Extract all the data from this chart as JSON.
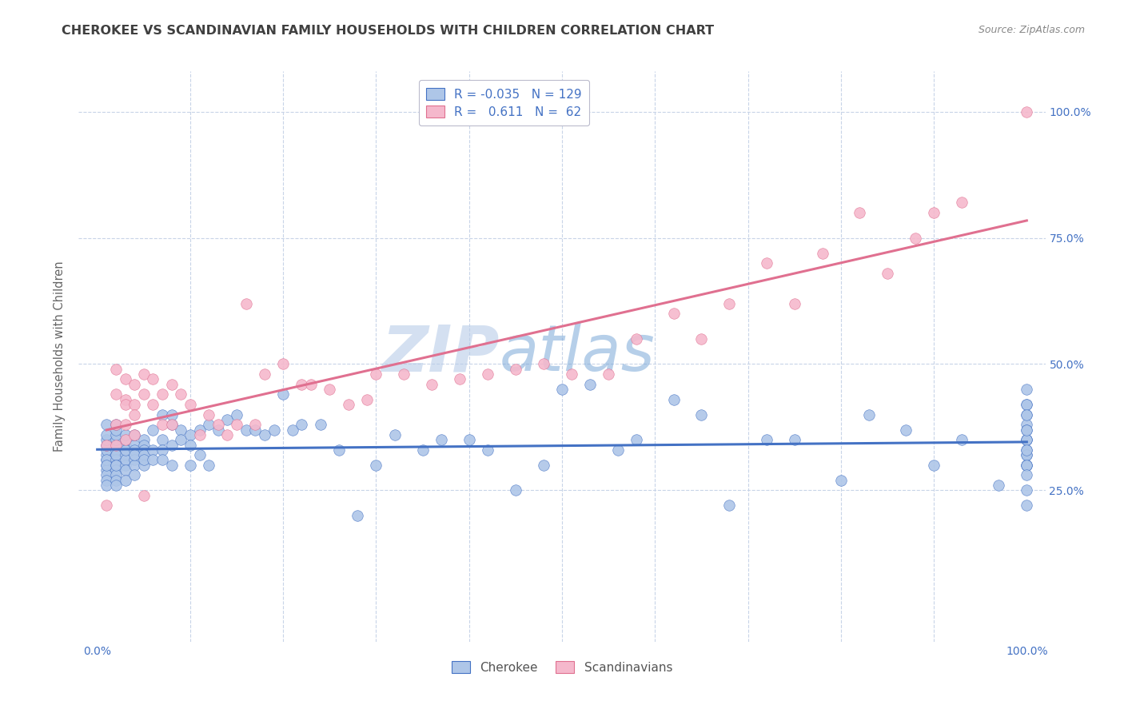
{
  "title": "CHEROKEE VS SCANDINAVIAN FAMILY HOUSEHOLDS WITH CHILDREN CORRELATION CHART",
  "source": "Source: ZipAtlas.com",
  "ylabel": "Family Households with Children",
  "xlim": [
    -0.02,
    1.02
  ],
  "ylim": [
    -0.05,
    1.08
  ],
  "watermark_zip": "ZIP",
  "watermark_atlas": "atlas",
  "legend_cherokee_R": "-0.035",
  "legend_cherokee_N": "129",
  "legend_scand_R": "0.611",
  "legend_scand_N": "62",
  "cherokee_color": "#aec6e8",
  "scand_color": "#f5b8cc",
  "cherokee_line_color": "#4472c4",
  "scand_line_color": "#e07090",
  "background_color": "#ffffff",
  "grid_color": "#c8d4e8",
  "title_color": "#404040",
  "source_color": "#888888",
  "label_color": "#4472c4",
  "cherokee_x": [
    0.01,
    0.01,
    0.01,
    0.01,
    0.01,
    0.01,
    0.01,
    0.01,
    0.01,
    0.01,
    0.01,
    0.01,
    0.01,
    0.01,
    0.02,
    0.02,
    0.02,
    0.02,
    0.02,
    0.02,
    0.02,
    0.02,
    0.02,
    0.02,
    0.02,
    0.02,
    0.02,
    0.02,
    0.02,
    0.03,
    0.03,
    0.03,
    0.03,
    0.03,
    0.03,
    0.03,
    0.03,
    0.03,
    0.03,
    0.04,
    0.04,
    0.04,
    0.04,
    0.04,
    0.04,
    0.04,
    0.05,
    0.05,
    0.05,
    0.05,
    0.05,
    0.05,
    0.06,
    0.06,
    0.06,
    0.07,
    0.07,
    0.07,
    0.07,
    0.08,
    0.08,
    0.08,
    0.08,
    0.09,
    0.09,
    0.1,
    0.1,
    0.1,
    0.11,
    0.11,
    0.12,
    0.12,
    0.13,
    0.14,
    0.15,
    0.16,
    0.17,
    0.18,
    0.19,
    0.2,
    0.21,
    0.22,
    0.24,
    0.26,
    0.28,
    0.3,
    0.32,
    0.35,
    0.37,
    0.4,
    0.42,
    0.45,
    0.48,
    0.5,
    0.53,
    0.56,
    0.58,
    0.62,
    0.65,
    0.68,
    0.72,
    0.75,
    0.8,
    0.83,
    0.87,
    0.9,
    0.93,
    0.97,
    1.0,
    1.0,
    1.0,
    1.0,
    1.0,
    1.0,
    1.0,
    1.0,
    1.0,
    1.0,
    1.0,
    1.0,
    1.0,
    1.0,
    1.0,
    1.0,
    1.0,
    1.0,
    1.0,
    1.0,
    1.0
  ],
  "cherokee_y": [
    0.31,
    0.32,
    0.33,
    0.3,
    0.29,
    0.34,
    0.35,
    0.28,
    0.27,
    0.36,
    0.38,
    0.26,
    0.31,
    0.3,
    0.32,
    0.33,
    0.34,
    0.35,
    0.36,
    0.31,
    0.3,
    0.29,
    0.28,
    0.27,
    0.37,
    0.38,
    0.26,
    0.32,
    0.3,
    0.33,
    0.34,
    0.32,
    0.3,
    0.31,
    0.29,
    0.27,
    0.35,
    0.36,
    0.33,
    0.34,
    0.36,
    0.33,
    0.31,
    0.3,
    0.28,
    0.32,
    0.35,
    0.34,
    0.33,
    0.32,
    0.3,
    0.31,
    0.37,
    0.33,
    0.31,
    0.4,
    0.35,
    0.33,
    0.31,
    0.38,
    0.34,
    0.3,
    0.4,
    0.37,
    0.35,
    0.36,
    0.34,
    0.3,
    0.37,
    0.32,
    0.38,
    0.3,
    0.37,
    0.39,
    0.4,
    0.37,
    0.37,
    0.36,
    0.37,
    0.44,
    0.37,
    0.38,
    0.38,
    0.33,
    0.2,
    0.3,
    0.36,
    0.33,
    0.35,
    0.35,
    0.33,
    0.25,
    0.3,
    0.45,
    0.46,
    0.33,
    0.35,
    0.43,
    0.4,
    0.22,
    0.35,
    0.35,
    0.27,
    0.4,
    0.37,
    0.3,
    0.35,
    0.26,
    0.4,
    0.32,
    0.42,
    0.3,
    0.35,
    0.22,
    0.35,
    0.33,
    0.38,
    0.3,
    0.37,
    0.35,
    0.42,
    0.25,
    0.37,
    0.4,
    0.32,
    0.45,
    0.3,
    0.28,
    0.33
  ],
  "scand_x": [
    0.01,
    0.01,
    0.02,
    0.02,
    0.02,
    0.02,
    0.03,
    0.03,
    0.03,
    0.03,
    0.03,
    0.04,
    0.04,
    0.04,
    0.04,
    0.05,
    0.05,
    0.05,
    0.06,
    0.06,
    0.07,
    0.07,
    0.08,
    0.08,
    0.09,
    0.1,
    0.11,
    0.12,
    0.13,
    0.14,
    0.15,
    0.16,
    0.17,
    0.18,
    0.2,
    0.22,
    0.23,
    0.25,
    0.27,
    0.29,
    0.3,
    0.33,
    0.36,
    0.39,
    0.42,
    0.45,
    0.48,
    0.51,
    0.55,
    0.58,
    0.62,
    0.65,
    0.68,
    0.72,
    0.75,
    0.78,
    0.82,
    0.85,
    0.88,
    0.9,
    0.93,
    1.0
  ],
  "scand_y": [
    0.22,
    0.34,
    0.49,
    0.44,
    0.38,
    0.34,
    0.47,
    0.43,
    0.42,
    0.38,
    0.35,
    0.46,
    0.42,
    0.4,
    0.36,
    0.48,
    0.44,
    0.24,
    0.47,
    0.42,
    0.44,
    0.38,
    0.46,
    0.38,
    0.44,
    0.42,
    0.36,
    0.4,
    0.38,
    0.36,
    0.38,
    0.62,
    0.38,
    0.48,
    0.5,
    0.46,
    0.46,
    0.45,
    0.42,
    0.43,
    0.48,
    0.48,
    0.46,
    0.47,
    0.48,
    0.49,
    0.5,
    0.48,
    0.48,
    0.55,
    0.6,
    0.55,
    0.62,
    0.7,
    0.62,
    0.72,
    0.8,
    0.68,
    0.75,
    0.8,
    0.82,
    1.0
  ]
}
